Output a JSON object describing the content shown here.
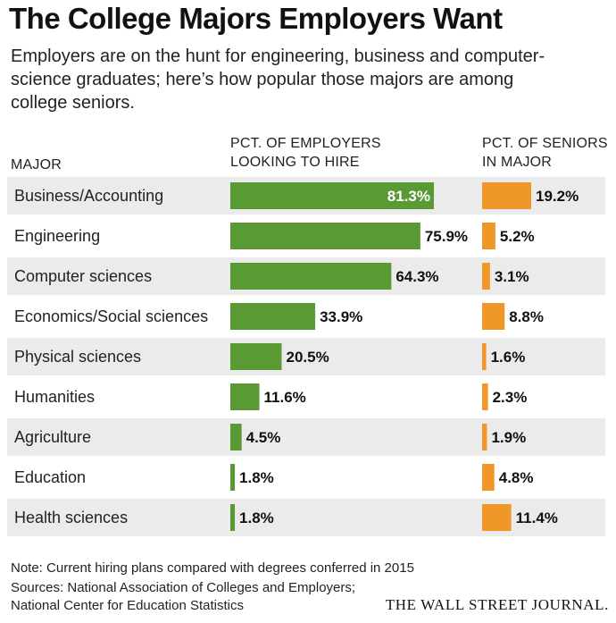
{
  "header": {
    "title": "The College Majors Employers Want",
    "subtitle": "Employers are on the hunt for engineering, business and computer-science graduates; here’s how popular those majors are among college seniors."
  },
  "columns": {
    "major": "MAJOR",
    "employers_line1": "PCT. OF EMPLOYERS",
    "employers_line2": "LOOKING TO HIRE",
    "seniors_line1": "PCT. OF SENIORS",
    "seniors_line2": "IN MAJOR"
  },
  "chart_data": {
    "type": "bar",
    "orientation": "horizontal",
    "categories": [
      "Business/Accounting",
      "Engineering",
      "Computer sciences",
      "Economics/Social sciences",
      "Physical sciences",
      "Humanities",
      "Agriculture",
      "Education",
      "Health sciences"
    ],
    "series": [
      {
        "name": "PCT. OF EMPLOYERS LOOKING TO HIRE",
        "values": [
          81.3,
          75.9,
          64.3,
          33.9,
          20.5,
          11.6,
          4.5,
          1.8,
          1.8
        ],
        "labels": [
          "81.3%",
          "75.9%",
          "64.3%",
          "33.9%",
          "20.5%",
          "11.6%",
          "4.5%",
          "1.8%",
          "1.8%"
        ],
        "color": "#5a9a35"
      },
      {
        "name": "PCT. OF SENIORS IN MAJOR",
        "values": [
          19.2,
          5.2,
          3.1,
          8.8,
          1.6,
          2.3,
          1.9,
          4.8,
          11.4
        ],
        "labels": [
          "19.2%",
          "5.2%",
          "3.1%",
          "8.8%",
          "1.6%",
          "2.3%",
          "1.9%",
          "4.8%",
          "11.4%"
        ],
        "color": "#f0972a"
      }
    ],
    "row_stripe_color": "#ebebeb",
    "grid": false,
    "legend": "none"
  },
  "footer": {
    "note": "Note: Current hiring plans compared with degrees conferred in 2015",
    "sources_line1": "Sources: National Association of Colleges and Employers;",
    "sources_line2": "National Center for Education Statistics",
    "logo": "THE WALL STREET JOURNAL."
  }
}
